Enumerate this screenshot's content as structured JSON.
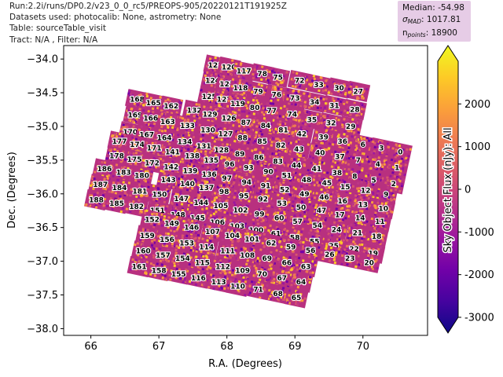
{
  "header": {
    "line1": "Run:2.2i/runs/DP0.2/v23_0_0_rc5/PREOPS-905/20220121T191925Z",
    "line2": "Datasets used: photocalib: None, astrometry: None",
    "line3": "Table: sourceTable_visit",
    "line4": "Tract: N/A , Filter: N/A"
  },
  "stats": {
    "median": "Median: -54.98",
    "sigma_label": "σ",
    "sigma_sub": "MAD",
    "sigma_value": ": 1017.81",
    "npoints_label": "n",
    "npoints_sub": "points",
    "npoints_value": ": 18900"
  },
  "colormap": [
    "#0d0887",
    "#46039f",
    "#7201a8",
    "#9c179e",
    "#bd3786",
    "#d8576b",
    "#ed7953",
    "#fb9f3a",
    "#fdca26",
    "#f0f921"
  ],
  "chart_data": {
    "type": "scatter",
    "xlabel": "R.A. (Degrees)",
    "ylabel": "Dec. (Degrees)",
    "xlim": [
      65.6,
      70.95
    ],
    "ylim": [
      -38.1,
      -33.8
    ],
    "x_inverted": false,
    "y_inverted": true,
    "xticks": [
      66,
      67,
      68,
      69,
      70
    ],
    "yticks": [
      -34.0,
      -34.5,
      -35.0,
      -35.5,
      -36.0,
      -36.5,
      -37.0,
      -37.5,
      -38.0
    ],
    "colorbar": {
      "label": "Sky Object Flux (nJy): All",
      "range": [
        -3000,
        3000
      ],
      "ticks": [
        -3000,
        -2000,
        -1000,
        0,
        1000,
        2000
      ]
    },
    "detectors": [
      {
        "id": "123",
        "x": 67.83,
        "y": -34.09
      },
      {
        "id": "120",
        "x": 68.03,
        "y": -34.12
      },
      {
        "id": "117",
        "x": 68.25,
        "y": -34.18
      },
      {
        "id": "78",
        "x": 68.52,
        "y": -34.22
      },
      {
        "id": "75",
        "x": 68.75,
        "y": -34.27
      },
      {
        "id": "72",
        "x": 69.07,
        "y": -34.32
      },
      {
        "id": "33",
        "x": 69.35,
        "y": -34.38
      },
      {
        "id": "30",
        "x": 69.65,
        "y": -34.43
      },
      {
        "id": "27",
        "x": 69.93,
        "y": -34.48
      },
      {
        "id": "124",
        "x": 67.79,
        "y": -34.32
      },
      {
        "id": "121",
        "x": 68.0,
        "y": -34.37
      },
      {
        "id": "118",
        "x": 68.2,
        "y": -34.43
      },
      {
        "id": "79",
        "x": 68.46,
        "y": -34.48
      },
      {
        "id": "76",
        "x": 68.73,
        "y": -34.53
      },
      {
        "id": "73",
        "x": 69.0,
        "y": -34.58
      },
      {
        "id": "34",
        "x": 69.29,
        "y": -34.64
      },
      {
        "id": "31",
        "x": 69.58,
        "y": -34.69
      },
      {
        "id": "28",
        "x": 69.88,
        "y": -34.75
      },
      {
        "id": "125",
        "x": 67.74,
        "y": -34.56
      },
      {
        "id": "122",
        "x": 67.96,
        "y": -34.6
      },
      {
        "id": "119",
        "x": 68.16,
        "y": -34.66
      },
      {
        "id": "80",
        "x": 68.41,
        "y": -34.72
      },
      {
        "id": "77",
        "x": 68.66,
        "y": -34.77
      },
      {
        "id": "74",
        "x": 68.96,
        "y": -34.82
      },
      {
        "id": "35",
        "x": 69.25,
        "y": -34.9
      },
      {
        "id": "32",
        "x": 69.53,
        "y": -34.95
      },
      {
        "id": "29",
        "x": 69.82,
        "y": -35.0
      },
      {
        "id": "168",
        "x": 66.68,
        "y": -34.6
      },
      {
        "id": "165",
        "x": 66.92,
        "y": -34.65
      },
      {
        "id": "162",
        "x": 67.18,
        "y": -34.7
      },
      {
        "id": "132",
        "x": 67.52,
        "y": -34.76
      },
      {
        "id": "129",
        "x": 67.75,
        "y": -34.82
      },
      {
        "id": "126",
        "x": 68.03,
        "y": -34.88
      },
      {
        "id": "87",
        "x": 68.28,
        "y": -34.94
      },
      {
        "id": "84",
        "x": 68.57,
        "y": -34.99
      },
      {
        "id": "81",
        "x": 68.83,
        "y": -35.05
      },
      {
        "id": "42",
        "x": 69.1,
        "y": -35.11
      },
      {
        "id": "39",
        "x": 69.42,
        "y": -35.16
      },
      {
        "id": "36",
        "x": 69.7,
        "y": -35.22
      },
      {
        "id": "6",
        "x": 70.0,
        "y": -35.27
      },
      {
        "id": "3",
        "x": 70.27,
        "y": -35.32
      },
      {
        "id": "0",
        "x": 70.55,
        "y": -35.38
      },
      {
        "id": "169",
        "x": 66.65,
        "y": -34.83
      },
      {
        "id": "166",
        "x": 66.88,
        "y": -34.88
      },
      {
        "id": "163",
        "x": 67.13,
        "y": -34.93
      },
      {
        "id": "133",
        "x": 67.42,
        "y": -34.99
      },
      {
        "id": "130",
        "x": 67.72,
        "y": -35.05
      },
      {
        "id": "127",
        "x": 67.98,
        "y": -35.11
      },
      {
        "id": "88",
        "x": 68.23,
        "y": -35.17
      },
      {
        "id": "85",
        "x": 68.52,
        "y": -35.22
      },
      {
        "id": "82",
        "x": 68.79,
        "y": -35.28
      },
      {
        "id": "43",
        "x": 69.06,
        "y": -35.34
      },
      {
        "id": "40",
        "x": 69.37,
        "y": -35.39
      },
      {
        "id": "37",
        "x": 69.66,
        "y": -35.45
      },
      {
        "id": "7",
        "x": 69.93,
        "y": -35.5
      },
      {
        "id": "4",
        "x": 70.22,
        "y": -35.56
      },
      {
        "id": "1",
        "x": 70.5,
        "y": -35.61
      },
      {
        "id": "170",
        "x": 66.58,
        "y": -35.08
      },
      {
        "id": "167",
        "x": 66.82,
        "y": -35.12
      },
      {
        "id": "164",
        "x": 67.08,
        "y": -35.17
      },
      {
        "id": "134",
        "x": 67.38,
        "y": -35.23
      },
      {
        "id": "131",
        "x": 67.66,
        "y": -35.29
      },
      {
        "id": "128",
        "x": 67.92,
        "y": -35.35
      },
      {
        "id": "89",
        "x": 68.19,
        "y": -35.41
      },
      {
        "id": "86",
        "x": 68.47,
        "y": -35.46
      },
      {
        "id": "83",
        "x": 68.75,
        "y": -35.52
      },
      {
        "id": "44",
        "x": 69.02,
        "y": -35.58
      },
      {
        "id": "41",
        "x": 69.32,
        "y": -35.63
      },
      {
        "id": "38",
        "x": 69.62,
        "y": -35.69
      },
      {
        "id": "8",
        "x": 69.88,
        "y": -35.74
      },
      {
        "id": "5",
        "x": 70.16,
        "y": -35.8
      },
      {
        "id": "2",
        "x": 70.45,
        "y": -35.85
      },
      {
        "id": "177",
        "x": 66.42,
        "y": -35.22
      },
      {
        "id": "174",
        "x": 66.68,
        "y": -35.27
      },
      {
        "id": "171",
        "x": 66.93,
        "y": -35.32
      },
      {
        "id": "141",
        "x": 67.2,
        "y": -35.38
      },
      {
        "id": "138",
        "x": 67.49,
        "y": -35.44
      },
      {
        "id": "135",
        "x": 67.77,
        "y": -35.5
      },
      {
        "id": "96",
        "x": 68.04,
        "y": -35.56
      },
      {
        "id": "93",
        "x": 68.32,
        "y": -35.61
      },
      {
        "id": "90",
        "x": 68.61,
        "y": -35.67
      },
      {
        "id": "51",
        "x": 68.88,
        "y": -35.73
      },
      {
        "id": "48",
        "x": 69.17,
        "y": -35.79
      },
      {
        "id": "45",
        "x": 69.47,
        "y": -35.84
      },
      {
        "id": "15",
        "x": 69.74,
        "y": -35.9
      },
      {
        "id": "12",
        "x": 70.04,
        "y": -35.95
      },
      {
        "id": "9",
        "x": 70.34,
        "y": -36.01
      },
      {
        "id": "178",
        "x": 66.38,
        "y": -35.44
      },
      {
        "id": "175",
        "x": 66.64,
        "y": -35.49
      },
      {
        "id": "172",
        "x": 66.9,
        "y": -35.54
      },
      {
        "id": "142",
        "x": 67.18,
        "y": -35.6
      },
      {
        "id": "139",
        "x": 67.46,
        "y": -35.66
      },
      {
        "id": "136",
        "x": 67.74,
        "y": -35.71
      },
      {
        "id": "97",
        "x": 68.0,
        "y": -35.77
      },
      {
        "id": "94",
        "x": 68.29,
        "y": -35.83
      },
      {
        "id": "91",
        "x": 68.57,
        "y": -35.88
      },
      {
        "id": "52",
        "x": 68.85,
        "y": -35.94
      },
      {
        "id": "49",
        "x": 69.14,
        "y": -36.0
      },
      {
        "id": "46",
        "x": 69.43,
        "y": -36.05
      },
      {
        "id": "16",
        "x": 69.7,
        "y": -36.11
      },
      {
        "id": "13",
        "x": 70.0,
        "y": -36.16
      },
      {
        "id": "10",
        "x": 70.3,
        "y": -36.22
      },
      {
        "id": "186",
        "x": 66.2,
        "y": -35.63
      },
      {
        "id": "183",
        "x": 66.48,
        "y": -35.68
      },
      {
        "id": "180",
        "x": 66.75,
        "y": -35.73
      },
      {
        "id": "143",
        "x": 67.14,
        "y": -35.79
      },
      {
        "id": "140",
        "x": 67.42,
        "y": -35.85
      },
      {
        "id": "137",
        "x": 67.7,
        "y": -35.91
      },
      {
        "id": "98",
        "x": 67.96,
        "y": -35.97
      },
      {
        "id": "95",
        "x": 68.25,
        "y": -36.03
      },
      {
        "id": "92",
        "x": 68.53,
        "y": -36.08
      },
      {
        "id": "53",
        "x": 68.81,
        "y": -36.14
      },
      {
        "id": "50",
        "x": 69.09,
        "y": -36.2
      },
      {
        "id": "47",
        "x": 69.39,
        "y": -36.25
      },
      {
        "id": "17",
        "x": 69.66,
        "y": -36.31
      },
      {
        "id": "14",
        "x": 69.96,
        "y": -36.36
      },
      {
        "id": "11",
        "x": 70.25,
        "y": -36.41
      },
      {
        "id": "187",
        "x": 66.14,
        "y": -35.86
      },
      {
        "id": "184",
        "x": 66.42,
        "y": -35.91
      },
      {
        "id": "181",
        "x": 66.72,
        "y": -35.96
      },
      {
        "id": "150",
        "x": 67.01,
        "y": -36.01
      },
      {
        "id": "147",
        "x": 67.33,
        "y": -36.07
      },
      {
        "id": "144",
        "x": 67.62,
        "y": -36.13
      },
      {
        "id": "105",
        "x": 67.91,
        "y": -36.18
      },
      {
        "id": "102",
        "x": 68.2,
        "y": -36.24
      },
      {
        "id": "99",
        "x": 68.48,
        "y": -36.3
      },
      {
        "id": "60",
        "x": 68.77,
        "y": -36.36
      },
      {
        "id": "57",
        "x": 69.04,
        "y": -36.41
      },
      {
        "id": "54",
        "x": 69.33,
        "y": -36.47
      },
      {
        "id": "24",
        "x": 69.61,
        "y": -36.53
      },
      {
        "id": "21",
        "x": 69.92,
        "y": -36.58
      },
      {
        "id": "18",
        "x": 70.2,
        "y": -36.63
      },
      {
        "id": "188",
        "x": 66.08,
        "y": -36.09
      },
      {
        "id": "185",
        "x": 66.38,
        "y": -36.14
      },
      {
        "id": "182",
        "x": 66.67,
        "y": -36.19
      },
      {
        "id": "151",
        "x": 66.98,
        "y": -36.25
      },
      {
        "id": "148",
        "x": 67.28,
        "y": -36.31
      },
      {
        "id": "145",
        "x": 67.57,
        "y": -36.36
      },
      {
        "id": "106",
        "x": 67.86,
        "y": -36.42
      },
      {
        "id": "103",
        "x": 68.15,
        "y": -36.48
      },
      {
        "id": "100",
        "x": 68.43,
        "y": -36.54
      },
      {
        "id": "61",
        "x": 68.72,
        "y": -36.59
      },
      {
        "id": "58",
        "x": 69.0,
        "y": -36.65
      },
      {
        "id": "55",
        "x": 69.29,
        "y": -36.71
      },
      {
        "id": "25",
        "x": 69.57,
        "y": -36.77
      },
      {
        "id": "22",
        "x": 69.87,
        "y": -36.82
      },
      {
        "id": "19",
        "x": 70.15,
        "y": -36.88
      },
      {
        "id": "152",
        "x": 66.9,
        "y": -36.38
      },
      {
        "id": "149",
        "x": 67.19,
        "y": -36.44
      },
      {
        "id": "146",
        "x": 67.48,
        "y": -36.5
      },
      {
        "id": "107",
        "x": 67.79,
        "y": -36.56
      },
      {
        "id": "104",
        "x": 68.08,
        "y": -36.62
      },
      {
        "id": "101",
        "x": 68.37,
        "y": -36.67
      },
      {
        "id": "62",
        "x": 68.65,
        "y": -36.73
      },
      {
        "id": "59",
        "x": 68.94,
        "y": -36.79
      },
      {
        "id": "56",
        "x": 69.23,
        "y": -36.84
      },
      {
        "id": "26",
        "x": 69.51,
        "y": -36.9
      },
      {
        "id": "23",
        "x": 69.81,
        "y": -36.96
      },
      {
        "id": "20",
        "x": 70.09,
        "y": -37.02
      },
      {
        "id": "159",
        "x": 66.83,
        "y": -36.62
      },
      {
        "id": "156",
        "x": 67.12,
        "y": -36.68
      },
      {
        "id": "153",
        "x": 67.41,
        "y": -36.73
      },
      {
        "id": "114",
        "x": 67.7,
        "y": -36.79
      },
      {
        "id": "111",
        "x": 68.01,
        "y": -36.85
      },
      {
        "id": "108",
        "x": 68.3,
        "y": -36.91
      },
      {
        "id": "69",
        "x": 68.59,
        "y": -36.96
      },
      {
        "id": "66",
        "x": 68.88,
        "y": -37.02
      },
      {
        "id": "63",
        "x": 69.16,
        "y": -37.08
      },
      {
        "id": "160",
        "x": 66.77,
        "y": -36.85
      },
      {
        "id": "157",
        "x": 67.06,
        "y": -36.91
      },
      {
        "id": "154",
        "x": 67.35,
        "y": -36.96
      },
      {
        "id": "115",
        "x": 67.64,
        "y": -37.02
      },
      {
        "id": "112",
        "x": 67.94,
        "y": -37.08
      },
      {
        "id": "109",
        "x": 68.23,
        "y": -37.14
      },
      {
        "id": "70",
        "x": 68.52,
        "y": -37.19
      },
      {
        "id": "67",
        "x": 68.81,
        "y": -37.25
      },
      {
        "id": "64",
        "x": 69.09,
        "y": -37.31
      },
      {
        "id": "161",
        "x": 66.71,
        "y": -37.08
      },
      {
        "id": "158",
        "x": 67.0,
        "y": -37.14
      },
      {
        "id": "155",
        "x": 67.29,
        "y": -37.19
      },
      {
        "id": "116",
        "x": 67.58,
        "y": -37.25
      },
      {
        "id": "113",
        "x": 67.88,
        "y": -37.31
      },
      {
        "id": "110",
        "x": 68.16,
        "y": -37.37
      },
      {
        "id": "71",
        "x": 68.46,
        "y": -37.42
      },
      {
        "id": "68",
        "x": 68.75,
        "y": -37.48
      },
      {
        "id": "65",
        "x": 69.02,
        "y": -37.54
      }
    ]
  }
}
